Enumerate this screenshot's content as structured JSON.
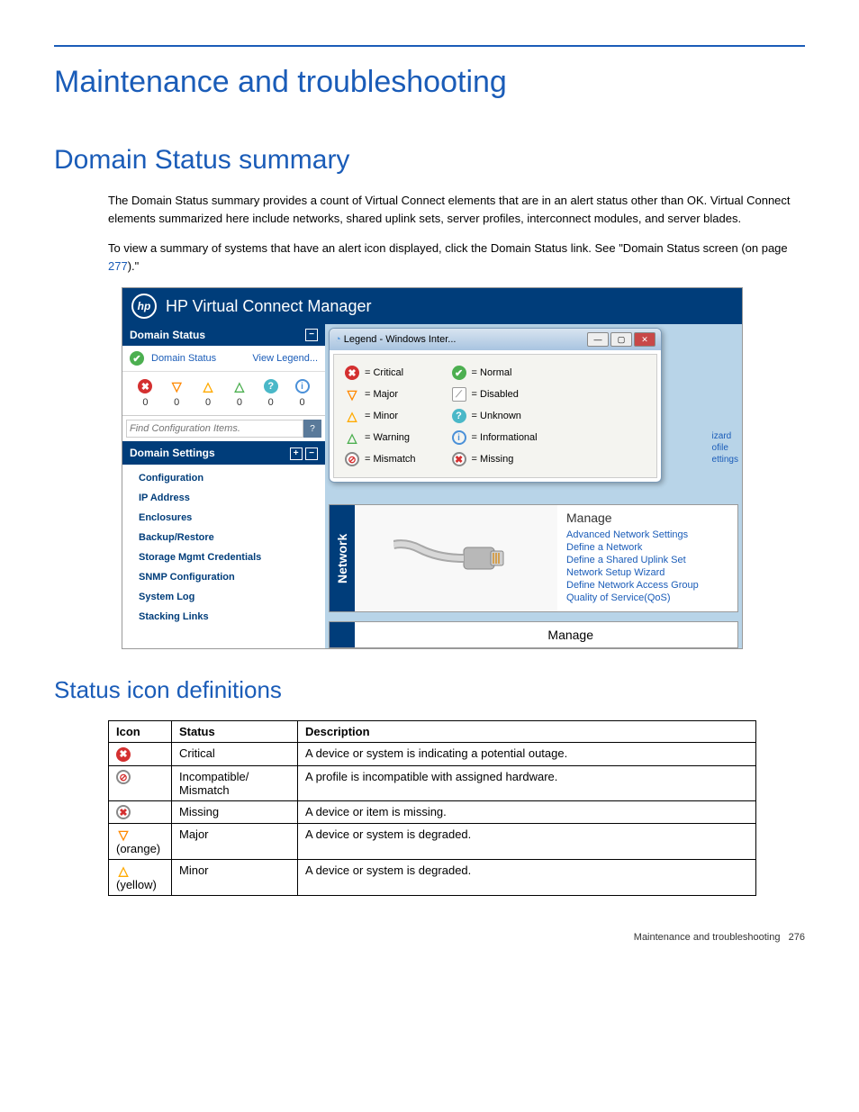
{
  "page": {
    "title": "Maintenance and troubleshooting",
    "section1_title": "Domain Status summary",
    "para1": "The Domain Status summary provides a count of Virtual Connect elements that are in an alert status other than OK. Virtual Connect elements summarized here include networks, shared uplink sets, server profiles, interconnect modules, and server blades.",
    "para2a": "To view a summary of systems that have an alert icon displayed, click the Domain Status link. See \"Domain Status screen (on page ",
    "para2_link": "277",
    "para2b": ").\"",
    "section2_title": "Status icon definitions",
    "footer_text": "Maintenance and troubleshooting",
    "footer_page": "276"
  },
  "app": {
    "title": "HP Virtual Connect Manager",
    "sidebar": {
      "domain_status_header": "Domain Status",
      "domain_status_link": "Domain Status",
      "view_legend": "View Legend...",
      "counts": [
        "0",
        "0",
        "0",
        "0",
        "0",
        "0"
      ],
      "search_placeholder": "Find Configuration Items.",
      "search_btn": "?",
      "settings_header": "Domain Settings",
      "settings_items": [
        "Configuration",
        "IP Address",
        "Enclosures",
        "Backup/Restore",
        "Storage Mgmt Credentials",
        "SNMP Configuration",
        "System Log",
        "Stacking Links"
      ]
    },
    "legend": {
      "window_title": "Legend - Windows Inter...",
      "left": [
        {
          "icon": "critical",
          "glyph": "✖",
          "label": "= Critical"
        },
        {
          "icon": "major",
          "glyph": "▽",
          "label": "= Major"
        },
        {
          "icon": "minor",
          "glyph": "△",
          "label": "= Minor"
        },
        {
          "icon": "warning",
          "glyph": "△",
          "label": "= Warning"
        },
        {
          "icon": "mismatch",
          "glyph": "⊘",
          "label": "= Mismatch"
        }
      ],
      "right": [
        {
          "icon": "normal",
          "glyph": "✔",
          "label": "= Normal"
        },
        {
          "icon": "disabled",
          "glyph": "⟋",
          "label": "= Disabled"
        },
        {
          "icon": "unknown",
          "glyph": "?",
          "label": "= Unknown"
        },
        {
          "icon": "info",
          "glyph": "i",
          "label": "= Informational"
        },
        {
          "icon": "missing",
          "glyph": "✖",
          "label": "= Missing"
        }
      ]
    },
    "peek": [
      "izard",
      "ofile",
      "ettings"
    ],
    "network": {
      "tab": "Network",
      "manage_title": "Manage",
      "links": [
        "Advanced Network Settings",
        "Define a Network",
        "Define a Shared Uplink Set",
        "Network Setup Wizard",
        "Define Network Access Group",
        "Quality of Service(QoS)"
      ]
    },
    "manage_bar": "Manage"
  },
  "table": {
    "headers": [
      "Icon",
      "Status",
      "Description"
    ],
    "rows": [
      {
        "icon": "critical",
        "glyph": "✖",
        "note": "",
        "status": "Critical",
        "desc": "A device or system is indicating a potential outage."
      },
      {
        "icon": "mismatch",
        "glyph": "⊘",
        "note": "",
        "status": "Incompatible/ Mismatch",
        "desc": "A profile is incompatible with assigned hardware."
      },
      {
        "icon": "missing",
        "glyph": "✖",
        "note": "",
        "status": "Missing",
        "desc": "A device or item is missing."
      },
      {
        "icon": "major",
        "glyph": "▽",
        "note": "(orange)",
        "status": "Major",
        "desc": "A device or system is degraded."
      },
      {
        "icon": "minor",
        "glyph": "△",
        "note": "(yellow)",
        "status": "Minor",
        "desc": "A device or system is degraded."
      }
    ]
  }
}
